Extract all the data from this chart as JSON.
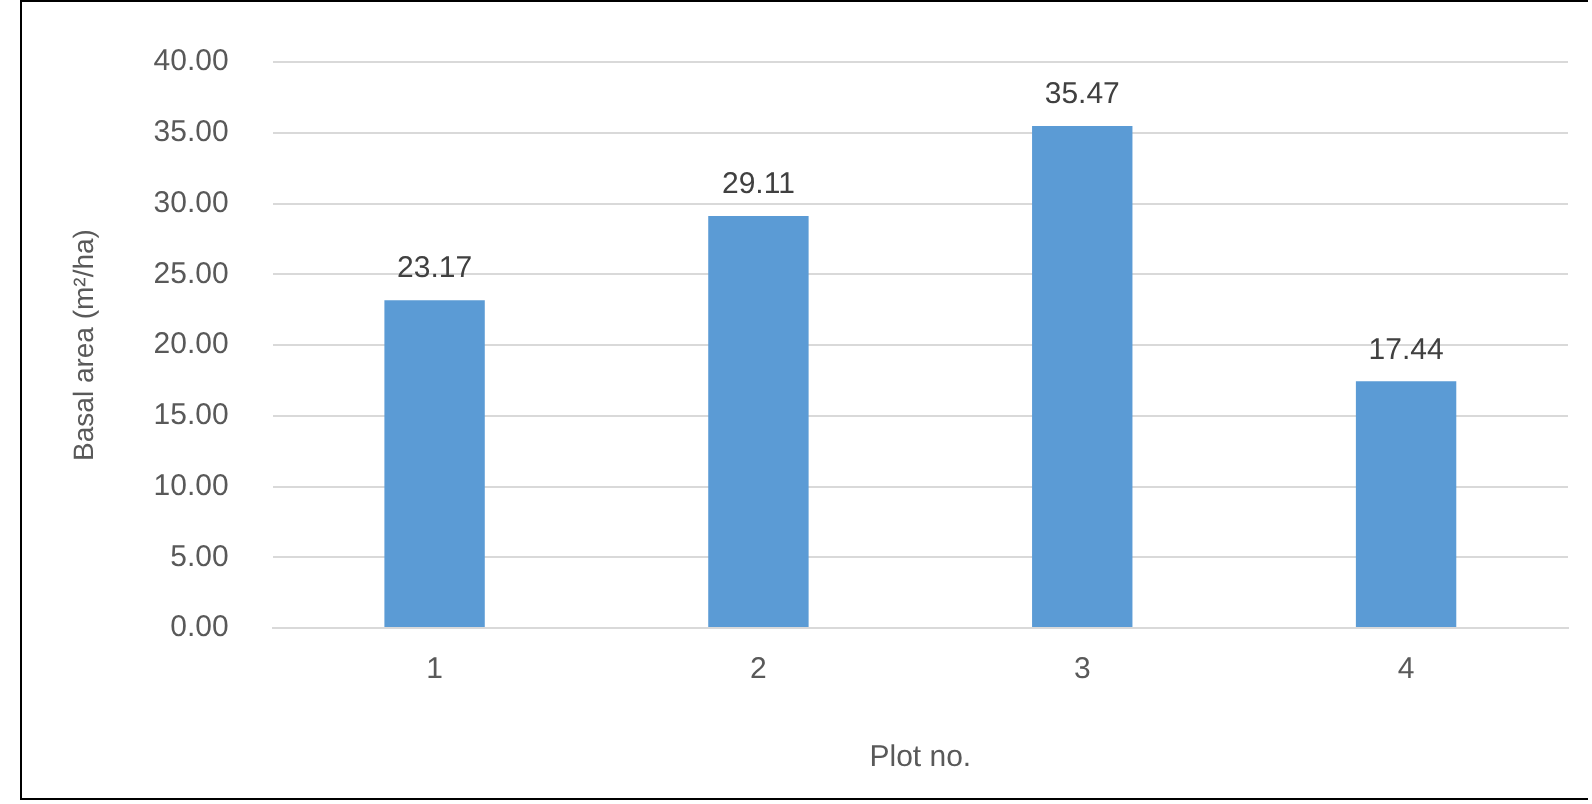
{
  "chart_data": {
    "type": "bar",
    "xlabel": "Plot no.",
    "ylabel": "Basal area (m²/ha)",
    "categories": [
      "1",
      "2",
      "3",
      "4"
    ],
    "values": [
      23.17,
      29.11,
      35.47,
      17.44
    ],
    "color": "#5b9bd5",
    "ylim": [
      0,
      40
    ],
    "yticks": [
      {
        "value": 0,
        "label": "0.00"
      },
      {
        "value": 5,
        "label": "5.00"
      },
      {
        "value": 10,
        "label": "10.00"
      },
      {
        "value": 15,
        "label": "15.00"
      },
      {
        "value": 20,
        "label": "20.00"
      },
      {
        "value": 25,
        "label": "25.00"
      },
      {
        "value": 30,
        "label": "30.00"
      },
      {
        "value": 35,
        "label": "35.00"
      },
      {
        "value": 40,
        "label": "40.00"
      }
    ],
    "grid": "y",
    "data_labels": true,
    "legend": false
  }
}
